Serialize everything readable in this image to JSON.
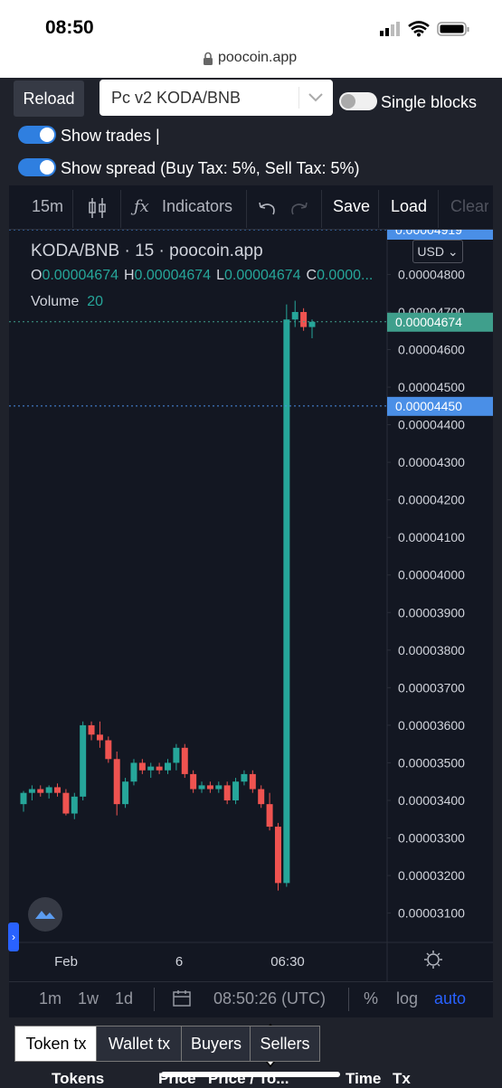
{
  "status_bar": {
    "time": "08:50"
  },
  "browser": {
    "url": "poocoin.app"
  },
  "controls": {
    "reload": "Reload",
    "pair_select": "Pc v2 KODA/BNB",
    "single_blocks": "Single blocks",
    "show_trades": "Show trades |",
    "show_spread": "Show spread (Buy Tax: 5%, Sell Tax: 5%)"
  },
  "toolbar": {
    "interval": "15m",
    "indicators": "Indicators",
    "save": "Save",
    "load": "Load",
    "clear": "Clear"
  },
  "chart": {
    "type": "candlestick",
    "symbol": "KODA/BNB",
    "interval": "15",
    "source": "poocoin.app",
    "currency": "USD",
    "ohlc_legend": [
      {
        "key": "O",
        "value": "0.00004674"
      },
      {
        "key": "H",
        "value": "0.00004674"
      },
      {
        "key": "L",
        "value": "0.00004674"
      },
      {
        "key": "C",
        "value": "0.0000..."
      }
    ],
    "volume_label": "Volume",
    "volume": 20,
    "open": [
      3.39e-05,
      3.42e-05,
      3.43e-05,
      3.42e-05,
      3.435e-05,
      3.42e-05,
      3.365e-05,
      3.41e-05,
      3.6e-05,
      3.575e-05,
      3.56e-05,
      3.51e-05,
      3.39e-05,
      3.45e-05,
      3.5e-05,
      3.48e-05,
      3.49e-05,
      3.48e-05,
      3.5e-05,
      3.54e-05,
      3.47e-05,
      3.43e-05,
      3.44e-05,
      3.43e-05,
      3.44e-05,
      3.4e-05,
      3.45e-05,
      3.47e-05,
      3.43e-05,
      3.39e-05,
      3.33e-05,
      3.18e-05,
      4.68e-05,
      4.7e-05,
      4.66e-05
    ],
    "high": [
      3.425e-05,
      3.44e-05,
      3.44e-05,
      3.44e-05,
      3.445e-05,
      3.43e-05,
      3.42e-05,
      3.61e-05,
      3.61e-05,
      3.61e-05,
      3.57e-05,
      3.53e-05,
      3.46e-05,
      3.51e-05,
      3.51e-05,
      3.5e-05,
      3.5e-05,
      3.51e-05,
      3.55e-05,
      3.55e-05,
      3.48e-05,
      3.45e-05,
      3.45e-05,
      3.45e-05,
      3.45e-05,
      3.46e-05,
      3.48e-05,
      3.48e-05,
      3.44e-05,
      3.42e-05,
      3.34e-05,
      4.72e-05,
      4.73e-05,
      4.71e-05,
      4.68e-05
    ],
    "low": [
      3.37e-05,
      3.4e-05,
      3.41e-05,
      3.405e-05,
      3.41e-05,
      3.36e-05,
      3.35e-05,
      3.4e-05,
      3.56e-05,
      3.54e-05,
      3.5e-05,
      3.36e-05,
      3.38e-05,
      3.44e-05,
      3.47e-05,
      3.46e-05,
      3.47e-05,
      3.47e-05,
      3.48e-05,
      3.46e-05,
      3.42e-05,
      3.42e-05,
      3.42e-05,
      3.42e-05,
      3.39e-05,
      3.39e-05,
      3.44e-05,
      3.42e-05,
      3.38e-05,
      3.32e-05,
      3.16e-05,
      3.17e-05,
      4.66e-05,
      4.65e-05,
      4.63e-05
    ],
    "close": [
      3.42e-05,
      3.43e-05,
      3.42e-05,
      3.435e-05,
      3.42e-05,
      3.365e-05,
      3.41e-05,
      3.6e-05,
      3.575e-05,
      3.56e-05,
      3.51e-05,
      3.39e-05,
      3.45e-05,
      3.5e-05,
      3.48e-05,
      3.49e-05,
      3.48e-05,
      3.5e-05,
      3.54e-05,
      3.47e-05,
      3.43e-05,
      3.44e-05,
      3.43e-05,
      3.44e-05,
      3.4e-05,
      3.45e-05,
      3.47e-05,
      3.43e-05,
      3.39e-05,
      3.33e-05,
      3.18e-05,
      4.68e-05,
      4.7e-05,
      4.66e-05,
      4.674e-05
    ],
    "ylim": [
      3.022e-05,
      4.919e-05
    ],
    "yticks": [
      {
        "value": 3.1e-05,
        "label": "0.00003100"
      },
      {
        "value": 3.2e-05,
        "label": "0.00003200"
      },
      {
        "value": 3.3e-05,
        "label": "0.00003300"
      },
      {
        "value": 3.4e-05,
        "label": "0.00003400"
      },
      {
        "value": 3.5e-05,
        "label": "0.00003500"
      },
      {
        "value": 3.6e-05,
        "label": "0.00003600"
      },
      {
        "value": 3.7e-05,
        "label": "0.00003700"
      },
      {
        "value": 3.8e-05,
        "label": "0.00003800"
      },
      {
        "value": 3.9e-05,
        "label": "0.00003900"
      },
      {
        "value": 4e-05,
        "label": "0.00004000"
      },
      {
        "value": 4.1e-05,
        "label": "0.00004100"
      },
      {
        "value": 4.2e-05,
        "label": "0.00004200"
      },
      {
        "value": 4.3e-05,
        "label": "0.00004300"
      },
      {
        "value": 4.4e-05,
        "label": "0.00004400"
      },
      {
        "value": 4.5e-05,
        "label": "0.00004500"
      },
      {
        "value": 4.6e-05,
        "label": "0.00004600"
      },
      {
        "value": 4.7e-05,
        "label": "0.00004700"
      },
      {
        "value": 4.8e-05,
        "label": "0.00004800"
      }
    ],
    "price_lines": [
      {
        "value": 4.919e-05,
        "label": "0.00004919",
        "color": "#4a8fe7"
      },
      {
        "value": 4.674e-05,
        "label": "0.00004674",
        "color": "#3f9f8c"
      },
      {
        "value": 4.45e-05,
        "label": "0.00004450",
        "color": "#4a8fe7"
      }
    ],
    "x_labels": [
      "Feb",
      "6",
      "06:30"
    ],
    "colors": {
      "up": "#26a69a",
      "down": "#ef5350"
    }
  },
  "time_bar": {
    "ranges": [
      "1m",
      "1w",
      "1d"
    ],
    "clock": "08:50:26 (UTC)",
    "options": [
      "%",
      "log",
      "auto"
    ]
  },
  "tabs": [
    "Token tx",
    "Wallet tx",
    "Buyers",
    "Sellers"
  ],
  "table_header": [
    "Tokens",
    "Price",
    "Price / To...",
    "Time",
    "Tx"
  ]
}
